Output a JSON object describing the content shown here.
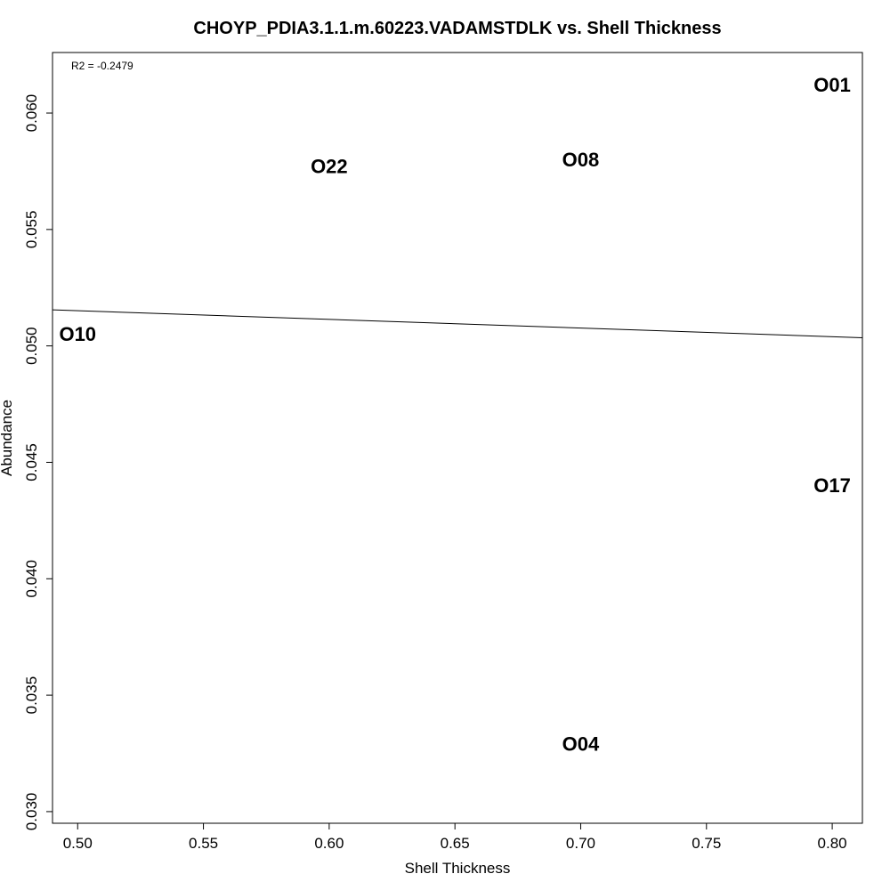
{
  "chart_data": {
    "type": "scatter",
    "title": "CHOYP_PDIA3.1.1.m.60223.VADAMSTDLK vs. Shell Thickness",
    "xlabel": "Shell Thickness",
    "ylabel": "Abundance",
    "xlim": [
      0.49,
      0.812
    ],
    "ylim": [
      0.0295,
      0.0626
    ],
    "xticks": [
      "0.50",
      "0.55",
      "0.60",
      "0.65",
      "0.70",
      "0.75",
      "0.80"
    ],
    "yticks": [
      "0.030",
      "0.035",
      "0.040",
      "0.045",
      "0.050",
      "0.055",
      "0.060"
    ],
    "grid": false,
    "points": [
      {
        "label": "O01",
        "x": 0.8,
        "y": 0.0612
      },
      {
        "label": "O22",
        "x": 0.6,
        "y": 0.0577
      },
      {
        "label": "O08",
        "x": 0.7,
        "y": 0.058
      },
      {
        "label": "O10",
        "x": 0.5,
        "y": 0.0505
      },
      {
        "label": "O17",
        "x": 0.8,
        "y": 0.044
      },
      {
        "label": "O04",
        "x": 0.7,
        "y": 0.0329
      }
    ],
    "fit_line": {
      "x": [
        0.49,
        0.812
      ],
      "y": [
        0.05155,
        0.05035
      ]
    },
    "annotation": "R2 = -0.2479"
  }
}
